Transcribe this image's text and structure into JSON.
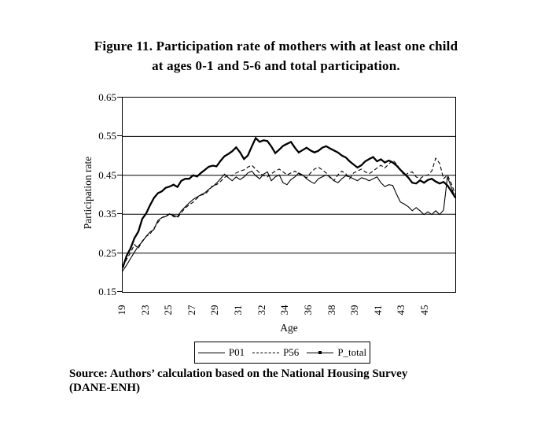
{
  "page": {
    "title_line1": "Figure 11. Participation rate of mothers with at least one child",
    "title_line2": "at ages 0-1 and 5-6 and total participation.",
    "source_line1": "Source: Authors’ calculation based on the National Housing Survey",
    "source_line2": "(DANE-ENH)"
  },
  "chart_data": {
    "type": "line",
    "title": "Figure 11. Participation rate of mothers with at least one child at ages 0-1 and 5-6 and total participation.",
    "xlabel": "Age",
    "ylabel": "Participation rate",
    "ylim": [
      0.15,
      0.65
    ],
    "yticks": [
      0.15,
      0.25,
      0.35,
      0.45,
      0.55,
      0.65
    ],
    "ytick_format_decimals": 2,
    "x_tick_labels": [
      "19",
      "23",
      "25",
      "27",
      "29",
      "31",
      "32",
      "34",
      "36",
      "38",
      "39",
      "41",
      "43",
      "45"
    ],
    "grid": "horizontal",
    "legend_position": "bottom-outside",
    "line_color": "#000000",
    "series": [
      {
        "name": "P01",
        "style": "solid-thin",
        "values": [
          0.204,
          0.219,
          0.236,
          0.252,
          0.268,
          0.279,
          0.293,
          0.304,
          0.311,
          0.334,
          0.341,
          0.344,
          0.35,
          0.347,
          0.344,
          0.359,
          0.369,
          0.379,
          0.388,
          0.394,
          0.4,
          0.405,
          0.414,
          0.421,
          0.43,
          0.441,
          0.453,
          0.444,
          0.436,
          0.446,
          0.439,
          0.446,
          0.456,
          0.461,
          0.449,
          0.441,
          0.453,
          0.459,
          0.436,
          0.446,
          0.451,
          0.431,
          0.426,
          0.439,
          0.446,
          0.456,
          0.451,
          0.441,
          0.434,
          0.429,
          0.441,
          0.446,
          0.451,
          0.446,
          0.436,
          0.431,
          0.441,
          0.449,
          0.446,
          0.441,
          0.436,
          0.444,
          0.441,
          0.436,
          0.441,
          0.446,
          0.431,
          0.421,
          0.426,
          0.424,
          0.401,
          0.381,
          0.376,
          0.369,
          0.359,
          0.367,
          0.359,
          0.349,
          0.356,
          0.349,
          0.359,
          0.349,
          0.361,
          0.446,
          0.419,
          0.391
        ]
      },
      {
        "name": "P56",
        "style": "dashed",
        "values": [
          0.214,
          0.234,
          0.251,
          0.272,
          0.262,
          0.281,
          0.293,
          0.299,
          0.314,
          0.329,
          0.341,
          0.346,
          0.351,
          0.344,
          0.341,
          0.354,
          0.366,
          0.374,
          0.381,
          0.391,
          0.399,
          0.401,
          0.411,
          0.424,
          0.426,
          0.434,
          0.444,
          0.451,
          0.449,
          0.456,
          0.461,
          0.464,
          0.471,
          0.476,
          0.466,
          0.456,
          0.449,
          0.446,
          0.454,
          0.461,
          0.466,
          0.459,
          0.451,
          0.456,
          0.461,
          0.454,
          0.449,
          0.444,
          0.456,
          0.466,
          0.471,
          0.464,
          0.456,
          0.444,
          0.436,
          0.451,
          0.461,
          0.454,
          0.441,
          0.456,
          0.461,
          0.466,
          0.459,
          0.454,
          0.461,
          0.469,
          0.476,
          0.469,
          0.479,
          0.489,
          0.479,
          0.464,
          0.449,
          0.456,
          0.459,
          0.446,
          0.441,
          0.449,
          0.451,
          0.461,
          0.494,
          0.481,
          0.441,
          0.451,
          0.429,
          0.401
        ]
      },
      {
        "name": "P_total",
        "style": "bold-marker",
        "values": [
          0.212,
          0.243,
          0.262,
          0.288,
          0.305,
          0.338,
          0.352,
          0.373,
          0.392,
          0.404,
          0.409,
          0.418,
          0.421,
          0.426,
          0.42,
          0.436,
          0.441,
          0.441,
          0.45,
          0.447,
          0.456,
          0.464,
          0.472,
          0.475,
          0.473,
          0.487,
          0.499,
          0.505,
          0.512,
          0.522,
          0.509,
          0.492,
          0.501,
          0.524,
          0.546,
          0.536,
          0.54,
          0.538,
          0.524,
          0.507,
          0.516,
          0.526,
          0.531,
          0.536,
          0.521,
          0.509,
          0.515,
          0.521,
          0.514,
          0.509,
          0.513,
          0.521,
          0.525,
          0.519,
          0.514,
          0.509,
          0.501,
          0.496,
          0.486,
          0.478,
          0.47,
          0.476,
          0.486,
          0.492,
          0.497,
          0.486,
          0.491,
          0.483,
          0.488,
          0.483,
          0.475,
          0.464,
          0.454,
          0.444,
          0.431,
          0.429,
          0.437,
          0.431,
          0.438,
          0.441,
          0.434,
          0.429,
          0.433,
          0.424,
          0.409,
          0.393
        ]
      }
    ]
  }
}
